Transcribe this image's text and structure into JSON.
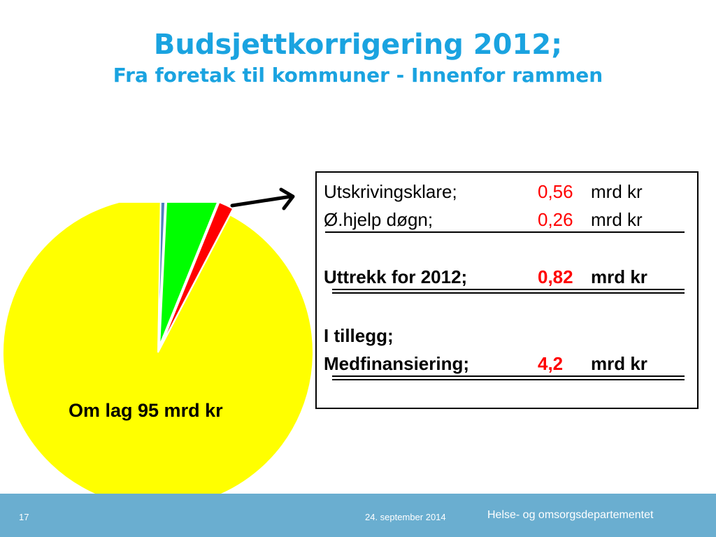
{
  "header": {
    "title": "Budsjettkorrigering 2012;",
    "subtitle": "Fra foretak til kommuner - Innenfor rammen"
  },
  "chart_data": {
    "type": "pie",
    "title": "",
    "center_label": "Om lag 95 mrd kr",
    "slices": [
      {
        "value": 95,
        "color": "#ffff00"
      },
      {
        "value": 0.5,
        "color": "#4f81bd",
        "exploded": true
      },
      {
        "value": 5.5,
        "color": "#00ff00",
        "exploded": true
      },
      {
        "value": 1.6,
        "color": "#ff0000",
        "exploded": true
      }
    ]
  },
  "info_box": {
    "rows": [
      {
        "label": "Utskrivingsklare;",
        "value": "0,56",
        "unit": "mrd kr",
        "bold": false
      },
      {
        "label": "Ø.hjelp døgn;",
        "value": "0,26",
        "unit": "mrd kr",
        "bold": false
      },
      {
        "label": "Uttrekk for 2012;",
        "value": "0,82",
        "unit": "mrd kr",
        "bold": true
      },
      {
        "label": "I tillegg;",
        "value": "",
        "unit": "",
        "bold": true
      },
      {
        "label": "Medfinansiering;",
        "value": "4,2",
        "unit": "mrd kr",
        "bold": true
      }
    ]
  },
  "footer": {
    "page_number": "17",
    "date": "24. september 2014",
    "organization": "Helse- og omsorgsdepartementet"
  },
  "colors": {
    "title": "#1aa3e0",
    "highlight_value": "#ff0000",
    "footer_bg": "#6aaed0"
  }
}
